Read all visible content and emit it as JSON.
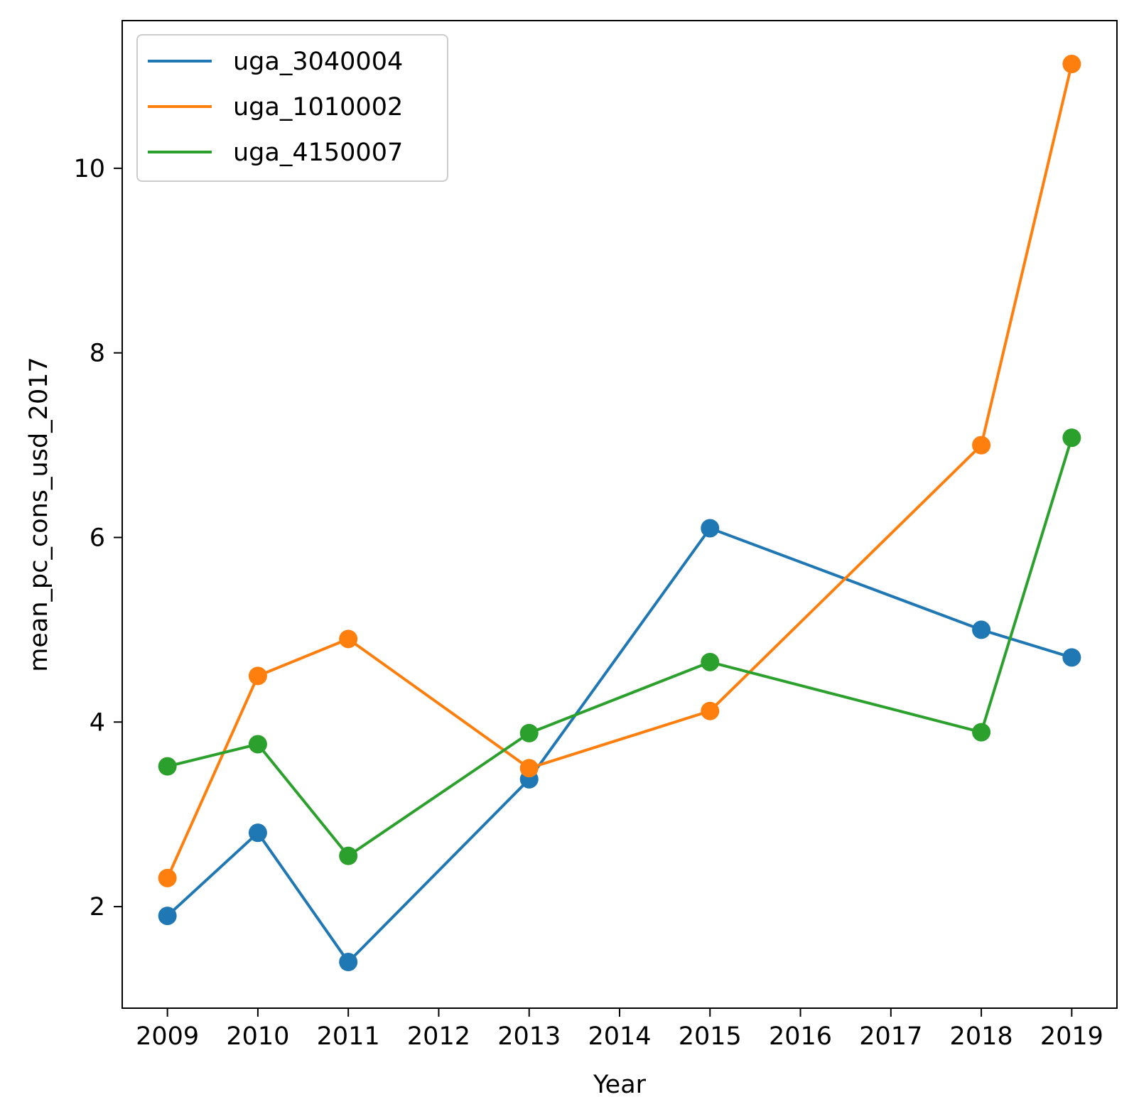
{
  "chart_data": {
    "type": "line",
    "xlabel": "Year",
    "ylabel": "mean_pc_cons_usd_2017",
    "x_ticks": [
      2009,
      2010,
      2011,
      2012,
      2013,
      2014,
      2015,
      2016,
      2017,
      2018,
      2019
    ],
    "x_tick_labels": [
      "2009",
      "2010",
      "2011",
      "2012",
      "2013",
      "2014",
      "2015",
      "2016",
      "2017",
      "2018",
      "2019"
    ],
    "y_ticks": [
      2,
      4,
      6,
      8,
      10
    ],
    "y_tick_labels": [
      "2",
      "4",
      "6",
      "8",
      "10"
    ],
    "xlim": [
      2008.5,
      2019.5
    ],
    "ylim": [
      0.9,
      11.6
    ],
    "grid": false,
    "legend_position": "top-left",
    "markers": true,
    "series": [
      {
        "name": "uga_3040004",
        "color": "#1f77b4",
        "x": [
          2009,
          2010,
          2011,
          2013,
          2015,
          2018,
          2019
        ],
        "y": [
          1.9,
          2.8,
          1.4,
          3.38,
          6.1,
          5.0,
          4.7
        ]
      },
      {
        "name": "uga_1010002",
        "color": "#ff7f0e",
        "x": [
          2009,
          2010,
          2011,
          2013,
          2015,
          2018,
          2019
        ],
        "y": [
          2.31,
          4.5,
          4.9,
          3.5,
          4.12,
          7.0,
          11.13
        ]
      },
      {
        "name": "uga_4150007",
        "color": "#2ca02c",
        "x": [
          2009,
          2010,
          2011,
          2013,
          2015,
          2018,
          2019
        ],
        "y": [
          3.52,
          3.76,
          2.55,
          3.88,
          4.65,
          3.89,
          7.08
        ]
      }
    ]
  }
}
